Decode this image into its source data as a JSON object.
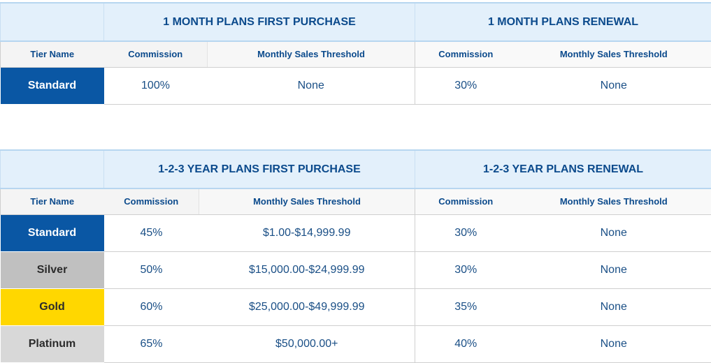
{
  "table1": {
    "group_headers": [
      "1 MONTH PLANS FIRST PURCHASE",
      "1 MONTH PLANS RENEWAL"
    ],
    "column_headers": [
      "Tier Name",
      "Commission",
      "Monthly Sales Threshold",
      "Commission",
      "Monthly Sales Threshold"
    ],
    "rows": [
      {
        "tier": "Standard",
        "tier_color": "#0a57a4",
        "commission_first": "100%",
        "threshold_first": "None",
        "commission_renewal": "30%",
        "threshold_renewal": "None"
      }
    ]
  },
  "table2": {
    "group_headers": [
      "1-2-3 YEAR PLANS FIRST PURCHASE",
      "1-2-3 YEAR PLANS RENEWAL"
    ],
    "column_headers": [
      "Tier Name",
      "Commission",
      "Monthly Sales Threshold",
      "Commission",
      "Monthly Sales Threshold"
    ],
    "rows": [
      {
        "tier": "Standard",
        "tier_color": "#0a57a4",
        "commission_first": "45%",
        "threshold_first": "$1.00-$14,999.99",
        "commission_renewal": "30%",
        "threshold_renewal": "None"
      },
      {
        "tier": "Silver",
        "tier_color": "#c0c0c0",
        "commission_first": "50%",
        "threshold_first": "$15,000.00-$24,999.99",
        "commission_renewal": "30%",
        "threshold_renewal": "None"
      },
      {
        "tier": "Gold",
        "tier_color": "#ffd700",
        "commission_first": "60%",
        "threshold_first": "$25,000.00-$49,999.99",
        "commission_renewal": "35%",
        "threshold_renewal": "None"
      },
      {
        "tier": "Platinum",
        "tier_color": "#d8d8d8",
        "commission_first": "65%",
        "threshold_first": "$50,000.00+",
        "commission_renewal": "40%",
        "threshold_renewal": "None"
      }
    ]
  },
  "colors": {
    "header_text": "#0b4a8c",
    "group_header_bg": "#e3f0fb",
    "cell_text": "#1a4f86"
  }
}
